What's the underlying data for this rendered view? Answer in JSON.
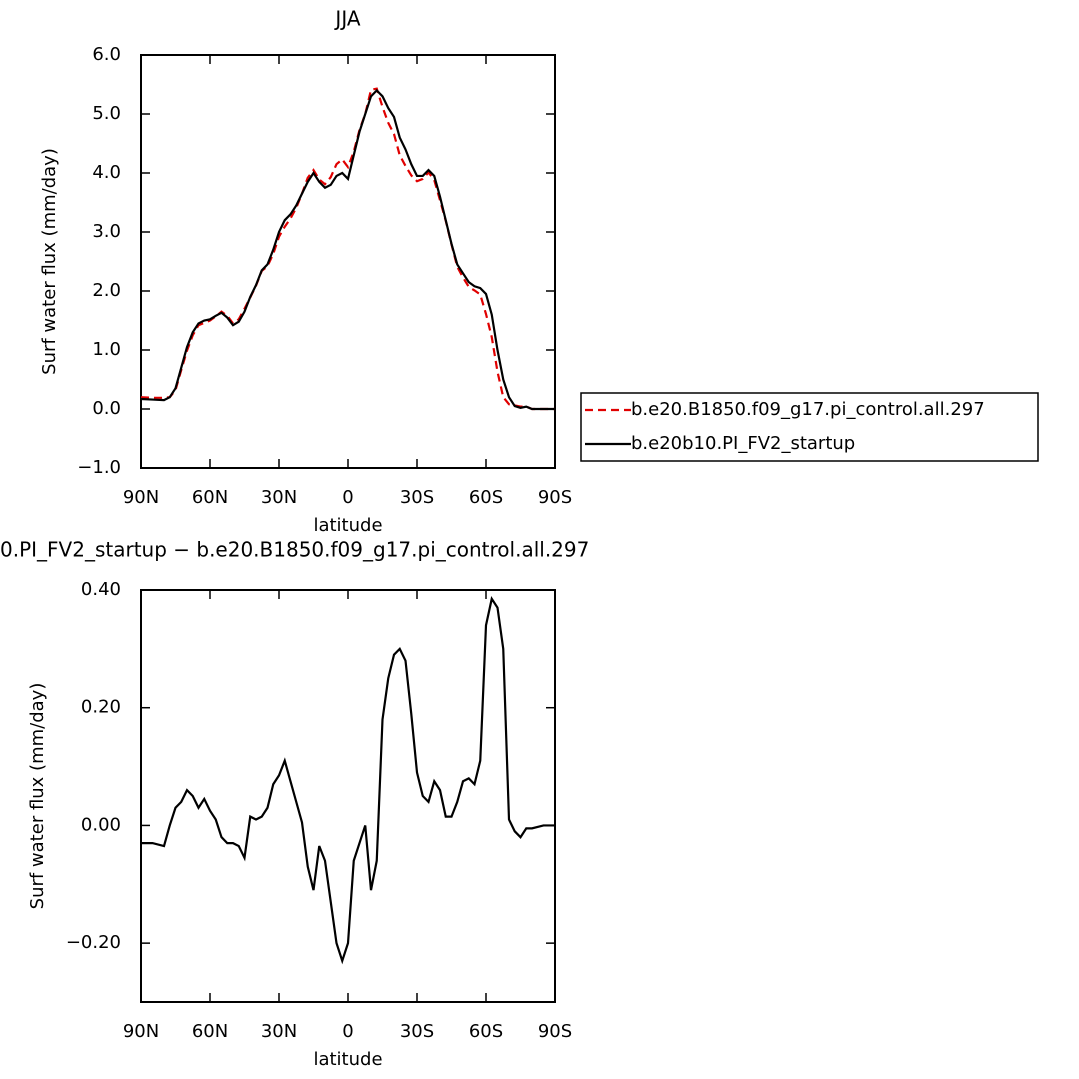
{
  "chart_data": [
    {
      "type": "line",
      "title": "JJA",
      "xlabel": "latitude",
      "ylabel": "Surf water flux (mm/day)",
      "x": [
        90,
        85,
        80,
        77.5,
        75,
        72.5,
        70,
        67.5,
        65,
        62.5,
        60,
        57.5,
        55,
        52.5,
        50,
        47.5,
        45,
        42.5,
        40,
        37.5,
        35,
        32.5,
        30,
        27.5,
        25,
        22.5,
        20,
        17.5,
        15,
        12.5,
        10,
        7.5,
        5,
        2.5,
        0,
        -2.5,
        -5,
        -7.5,
        -10,
        -12.5,
        -15,
        -17.5,
        -20,
        -22.5,
        -25,
        -27.5,
        -30,
        -32.5,
        -35,
        -37.5,
        -40,
        -42.5,
        -45,
        -47.5,
        -50,
        -52.5,
        -55,
        -57.5,
        -60,
        -62.5,
        -65,
        -67.5,
        -70,
        -72.5,
        -75,
        -77.5,
        -80,
        -85,
        -90
      ],
      "series": [
        {
          "name": "b.e20.B1850.f09_g17.pi_control.all.297",
          "color": "#e00000",
          "dashed": true,
          "values": [
            0.2,
            0.19,
            0.19,
            0.2,
            0.32,
            0.66,
            0.99,
            1.25,
            1.42,
            1.46,
            1.5,
            1.57,
            1.65,
            1.58,
            1.45,
            1.52,
            1.7,
            1.89,
            2.09,
            2.34,
            2.42,
            2.63,
            2.92,
            3.09,
            3.23,
            3.41,
            3.65,
            3.92,
            4.05,
            3.89,
            3.81,
            3.93,
            4.15,
            4.23,
            4.1,
            4.36,
            4.73,
            5.0,
            5.41,
            5.43,
            5.12,
            4.85,
            4.66,
            4.3,
            4.12,
            3.96,
            3.86,
            3.9,
            4.01,
            3.88,
            3.54,
            3.19,
            2.79,
            2.41,
            2.23,
            2.07,
            2.01,
            1.94,
            1.61,
            1.22,
            0.63,
            0.2,
            0.08,
            0.06,
            0.04,
            0.04,
            0.0,
            0.0,
            0.0
          ]
        },
        {
          "name": "b.e20b10.PI_FV2_startup",
          "color": "#000000",
          "dashed": false,
          "values": [
            0.17,
            0.16,
            0.15,
            0.2,
            0.35,
            0.7,
            1.05,
            1.3,
            1.45,
            1.5,
            1.52,
            1.58,
            1.63,
            1.55,
            1.42,
            1.48,
            1.65,
            1.9,
            2.1,
            2.35,
            2.45,
            2.7,
            3.0,
            3.2,
            3.3,
            3.45,
            3.65,
            3.85,
            4.0,
            3.85,
            3.75,
            3.8,
            3.95,
            4.0,
            3.9,
            4.3,
            4.7,
            5.0,
            5.3,
            5.4,
            5.3,
            5.1,
            4.95,
            4.6,
            4.4,
            4.15,
            3.95,
            3.95,
            4.05,
            3.95,
            3.6,
            3.2,
            2.8,
            2.45,
            2.3,
            2.15,
            2.08,
            2.05,
            1.95,
            1.6,
            1.0,
            0.5,
            0.2,
            0.05,
            0.02,
            0.04,
            0.0,
            0.0,
            0.0
          ]
        }
      ],
      "xlim": [
        90,
        -90
      ],
      "xticks": [
        {
          "value": 90,
          "label": "90N"
        },
        {
          "value": 60,
          "label": "60N"
        },
        {
          "value": 30,
          "label": "30N"
        },
        0,
        {
          "value": -30,
          "label": "30S"
        },
        {
          "value": -60,
          "label": "60S"
        },
        {
          "value": -90,
          "label": "90S"
        }
      ],
      "ylim": [
        -1,
        6
      ],
      "yticks": [
        {
          "value": -1,
          "label": "−1.0"
        },
        {
          "value": 0,
          "label": "0.0"
        },
        {
          "value": 1,
          "label": "1.0"
        },
        {
          "value": 2,
          "label": "2.0"
        },
        {
          "value": 3,
          "label": "3.0"
        },
        {
          "value": 4,
          "label": "4.0"
        },
        {
          "value": 5,
          "label": "5.0"
        },
        {
          "value": 6,
          "label": "6.0"
        }
      ],
      "legend": "outside right"
    },
    {
      "type": "line",
      "title": "0.PI_FV2_startup − b.e20.B1850.f09_g17.pi_control.all.297",
      "xlabel": "latitude",
      "ylabel": "Surf water flux (mm/day)",
      "x": [
        90,
        85,
        80,
        77.5,
        75,
        72.5,
        70,
        67.5,
        65,
        62.5,
        60,
        57.5,
        55,
        52.5,
        50,
        47.5,
        45,
        42.5,
        40,
        37.5,
        35,
        32.5,
        30,
        27.5,
        25,
        22.5,
        20,
        17.5,
        15,
        12.5,
        10,
        7.5,
        5,
        2.5,
        0,
        -2.5,
        -5,
        -7.5,
        -10,
        -12.5,
        -15,
        -17.5,
        -20,
        -22.5,
        -25,
        -27.5,
        -30,
        -32.5,
        -35,
        -37.5,
        -40,
        -42.5,
        -45,
        -47.5,
        -50,
        -52.5,
        -55,
        -57.5,
        -60,
        -62.5,
        -65,
        -67.5,
        -70,
        -72.5,
        -75,
        -77.5,
        -80,
        -85,
        -90
      ],
      "series": [
        {
          "color": "#000000",
          "dashed": false,
          "values": [
            -0.03,
            -0.03,
            -0.035,
            0.0,
            0.03,
            0.04,
            0.06,
            0.05,
            0.03,
            0.045,
            0.025,
            0.01,
            -0.02,
            -0.03,
            -0.03,
            -0.035,
            -0.055,
            0.015,
            0.01,
            0.015,
            0.03,
            0.07,
            0.085,
            0.11,
            0.075,
            0.04,
            0.005,
            -0.07,
            -0.11,
            -0.035,
            -0.06,
            -0.13,
            -0.2,
            -0.23,
            -0.2,
            -0.06,
            -0.03,
            0.0,
            -0.11,
            -0.06,
            0.18,
            0.25,
            0.29,
            0.3,
            0.28,
            0.19,
            0.09,
            0.05,
            0.04,
            0.075,
            0.06,
            0.015,
            0.015,
            0.04,
            0.075,
            0.08,
            0.07,
            0.11,
            0.34,
            0.385,
            0.37,
            0.3,
            0.01,
            -0.01,
            -0.02,
            -0.005,
            -0.005,
            0.0,
            0.0
          ]
        }
      ],
      "xlim": [
        90,
        -90
      ],
      "xticks": [
        {
          "value": 90,
          "label": "90N"
        },
        {
          "value": 60,
          "label": "60N"
        },
        {
          "value": 30,
          "label": "30N"
        },
        0,
        {
          "value": -30,
          "label": "30S"
        },
        {
          "value": -60,
          "label": "60S"
        },
        {
          "value": -90,
          "label": "90S"
        }
      ],
      "ylim": [
        -0.3,
        0.4
      ],
      "yticks": [
        {
          "value": -0.2,
          "label": "−0.20"
        },
        {
          "value": 0,
          "label": "0.00"
        },
        {
          "value": 0.2,
          "label": "0.20"
        },
        {
          "value": 0.4,
          "label": "0.40"
        }
      ]
    }
  ]
}
